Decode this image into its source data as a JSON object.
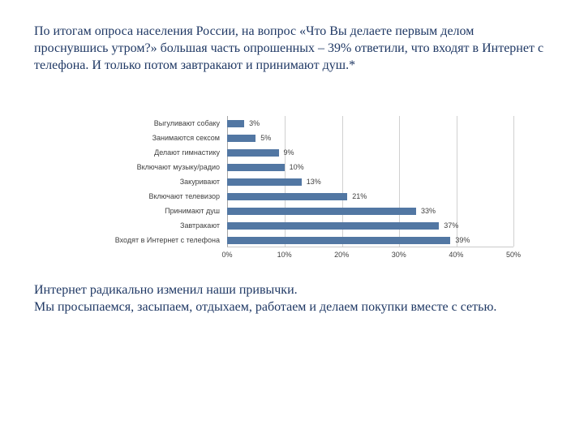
{
  "intro": {
    "text": "По итогам опроса населения России, на вопрос «Что Вы делаете первым делом проснувшись утром?» большая часть опрошенных – 39% ответили, что входят в Интернет с телефона. И только потом завтракают и принимают душ.*"
  },
  "outro": {
    "line1": "Интернет радикально изменил наши привычки.",
    "line2": "Мы просыпаемся, засыпаем, отдыхаем, работаем и делаем покупки вместе с сетью."
  },
  "chart_data": {
    "type": "bar",
    "orientation": "horizontal",
    "categories": [
      "Выгуливают собаку",
      "Занимаются сексом",
      "Делают гимнастику",
      "Включают музыку/радио",
      "Закуривают",
      "Включают телевизор",
      "Принимают душ",
      "Завтракают",
      "Входят в Интернет с телефона"
    ],
    "values": [
      3,
      5,
      9,
      10,
      13,
      21,
      33,
      37,
      39
    ],
    "value_labels": [
      "3%",
      "5%",
      "9%",
      "10%",
      "13%",
      "21%",
      "33%",
      "37%",
      "39%"
    ],
    "x_ticks": [
      "0%",
      "10%",
      "20%",
      "30%",
      "40%",
      "50%"
    ],
    "xlim": [
      0,
      50
    ],
    "grid": true,
    "legend": false,
    "title": "",
    "xlabel": "",
    "ylabel": ""
  },
  "colors": {
    "heading_text": "#1f3864",
    "chart_text": "#3f3f3f",
    "grid": "#d0d0d0",
    "bar": "#5277a3"
  }
}
